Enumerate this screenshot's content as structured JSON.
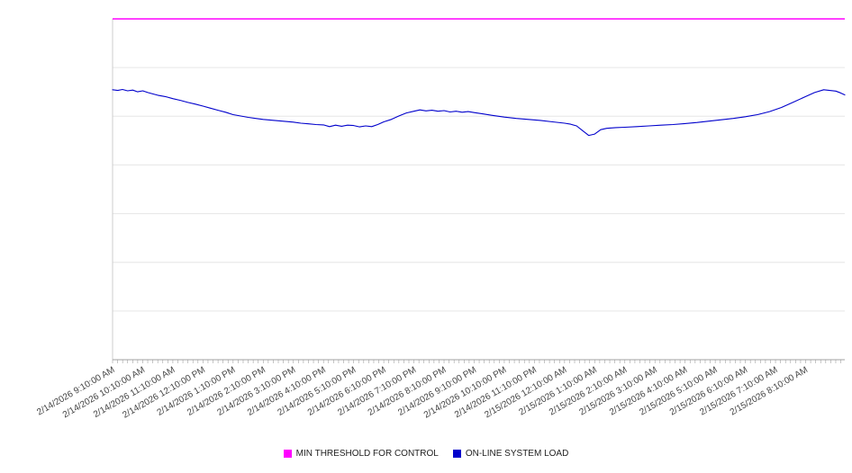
{
  "chart": {
    "background": "#ffffff",
    "grid_color": "#e6e6e6",
    "axis_color": "#a0a0a0",
    "left_axis_color": "#cccccc",
    "label_color": "#444444"
  },
  "chart_data": {
    "type": "line",
    "title": "",
    "xlabel": "",
    "ylabel": "",
    "ylim": [
      0,
      100
    ],
    "y_gridline_divisions": 7,
    "grid": "horizontal-only",
    "y_tick_labels_visible": false,
    "legend_position": "bottom",
    "x_hours_span": 24.3,
    "x_minor_tick_interval_minutes": 10,
    "x_labels": [
      "2/14/2026 9:10:00 AM",
      "2/14/2026 10:10:00 AM",
      "2/14/2026 11:10:00 AM",
      "2/14/2026 12:10:00 PM",
      "2/14/2026 1:10:00 PM",
      "2/14/2026 2:10:00 PM",
      "2/14/2026 3:10:00 PM",
      "2/14/2026 4:10:00 PM",
      "2/14/2026 5:10:00 PM",
      "2/14/2026 6:10:00 PM",
      "2/14/2026 7:10:00 PM",
      "2/14/2026 8:10:00 PM",
      "2/14/2026 9:10:00 PM",
      "2/14/2026 10:10:00 PM",
      "2/14/2026 11:10:00 PM",
      "2/15/2026 12:10:00 AM",
      "2/15/2026 1:10:00 AM",
      "2/15/2026 2:10:00 AM",
      "2/15/2026 3:10:00 AM",
      "2/15/2026 4:10:00 AM",
      "2/15/2026 5:10:00 AM",
      "2/15/2026 6:10:00 AM",
      "2/15/2026 7:10:00 AM",
      "2/15/2026 8:10:00 AM"
    ],
    "series": [
      {
        "name": "MIN THRESHOLD FOR CONTROL",
        "color": "#ff00ff",
        "type": "constant",
        "value": 100
      },
      {
        "name": "ON-LINE SYSTEM LOAD",
        "color": "#0000cc",
        "type": "line",
        "points": [
          [
            0,
            79.2
          ],
          [
            0.17,
            79.0
          ],
          [
            0.33,
            79.3
          ],
          [
            0.5,
            78.9
          ],
          [
            0.67,
            79.1
          ],
          [
            0.83,
            78.6
          ],
          [
            1.0,
            78.9
          ],
          [
            1.17,
            78.4
          ],
          [
            1.33,
            78.0
          ],
          [
            1.5,
            77.6
          ],
          [
            1.75,
            77.2
          ],
          [
            2.0,
            76.6
          ],
          [
            2.25,
            76.1
          ],
          [
            2.5,
            75.5
          ],
          [
            2.75,
            75.0
          ],
          [
            3.0,
            74.4
          ],
          [
            3.25,
            73.8
          ],
          [
            3.5,
            73.2
          ],
          [
            3.75,
            72.6
          ],
          [
            4.0,
            71.9
          ],
          [
            4.25,
            71.5
          ],
          [
            4.5,
            71.1
          ],
          [
            4.75,
            70.8
          ],
          [
            5.0,
            70.5
          ],
          [
            5.25,
            70.3
          ],
          [
            5.5,
            70.1
          ],
          [
            5.75,
            69.9
          ],
          [
            6.0,
            69.7
          ],
          [
            6.25,
            69.4
          ],
          [
            6.5,
            69.2
          ],
          [
            6.75,
            69.0
          ],
          [
            7.0,
            68.9
          ],
          [
            7.2,
            68.4
          ],
          [
            7.4,
            68.8
          ],
          [
            7.6,
            68.5
          ],
          [
            7.8,
            68.8
          ],
          [
            8.0,
            68.7
          ],
          [
            8.2,
            68.3
          ],
          [
            8.4,
            68.6
          ],
          [
            8.6,
            68.4
          ],
          [
            8.8,
            69.0
          ],
          [
            9.0,
            69.8
          ],
          [
            9.25,
            70.5
          ],
          [
            9.5,
            71.5
          ],
          [
            9.75,
            72.4
          ],
          [
            10.0,
            72.9
          ],
          [
            10.2,
            73.3
          ],
          [
            10.4,
            73.0
          ],
          [
            10.6,
            73.2
          ],
          [
            10.8,
            72.9
          ],
          [
            11.0,
            73.1
          ],
          [
            11.2,
            72.7
          ],
          [
            11.4,
            72.9
          ],
          [
            11.6,
            72.6
          ],
          [
            11.8,
            72.8
          ],
          [
            12.0,
            72.5
          ],
          [
            12.3,
            72.1
          ],
          [
            12.6,
            71.7
          ],
          [
            13.0,
            71.2
          ],
          [
            13.4,
            70.8
          ],
          [
            13.8,
            70.5
          ],
          [
            14.2,
            70.2
          ],
          [
            14.6,
            69.8
          ],
          [
            15.0,
            69.4
          ],
          [
            15.2,
            69.1
          ],
          [
            15.4,
            68.6
          ],
          [
            15.6,
            67.2
          ],
          [
            15.8,
            65.8
          ],
          [
            16.0,
            66.2
          ],
          [
            16.2,
            67.5
          ],
          [
            16.4,
            67.9
          ],
          [
            16.7,
            68.1
          ],
          [
            17.0,
            68.2
          ],
          [
            17.4,
            68.4
          ],
          [
            17.8,
            68.6
          ],
          [
            18.2,
            68.8
          ],
          [
            18.6,
            69.0
          ],
          [
            19.0,
            69.3
          ],
          [
            19.4,
            69.6
          ],
          [
            19.8,
            70.0
          ],
          [
            20.2,
            70.4
          ],
          [
            20.6,
            70.8
          ],
          [
            21.0,
            71.3
          ],
          [
            21.4,
            71.9
          ],
          [
            21.8,
            72.8
          ],
          [
            22.2,
            74.0
          ],
          [
            22.6,
            75.6
          ],
          [
            23.0,
            77.2
          ],
          [
            23.3,
            78.4
          ],
          [
            23.6,
            79.2
          ],
          [
            23.8,
            79.0
          ],
          [
            24.0,
            78.8
          ],
          [
            24.15,
            78.3
          ],
          [
            24.3,
            77.7
          ]
        ]
      }
    ]
  }
}
